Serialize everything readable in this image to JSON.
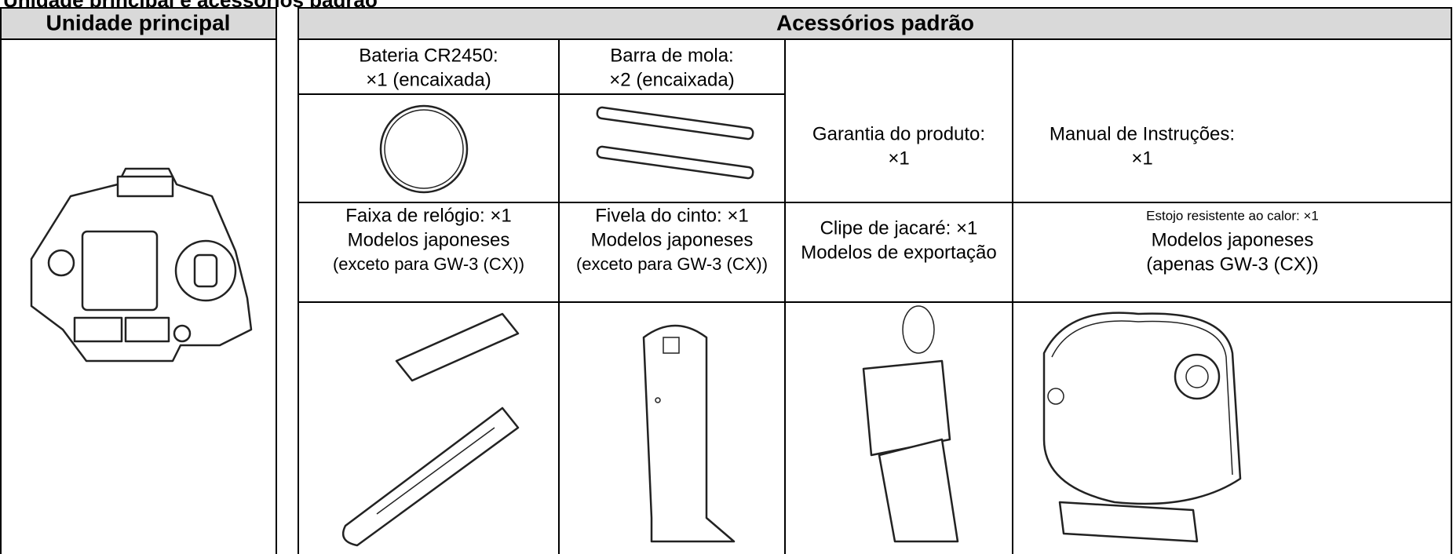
{
  "title": "Unidade principal e acessórios padrão",
  "main_unit": {
    "header": "Unidade principal"
  },
  "accessories": {
    "header": "Acessórios padrão",
    "items": [
      {
        "lines": [
          "Bateria CR2450:",
          "×1 (encaixada)"
        ]
      },
      {
        "lines": [
          "Barra de mola:",
          "×2 (encaixada)"
        ]
      },
      {
        "lines": [
          "Garantia do produto:",
          "×1"
        ]
      },
      {
        "lines": [
          "Manual de Instruções:",
          "×1"
        ]
      },
      {
        "lines": [
          "Faixa de relógio: ×1",
          "Modelos japoneses",
          "(exceto para GW-3 (CX))"
        ]
      },
      {
        "lines": [
          "Fivela do cinto: ×1",
          "Modelos japoneses",
          "(exceto para GW-3 (CX))"
        ]
      },
      {
        "lines": [
          "Clipe de jacaré: ×1",
          "Modelos de exportação"
        ]
      },
      {
        "lines": [
          "Estojo resistente ao calor: ×1",
          "Modelos japoneses",
          "(apenas GW-3 (CX))"
        ]
      }
    ]
  }
}
